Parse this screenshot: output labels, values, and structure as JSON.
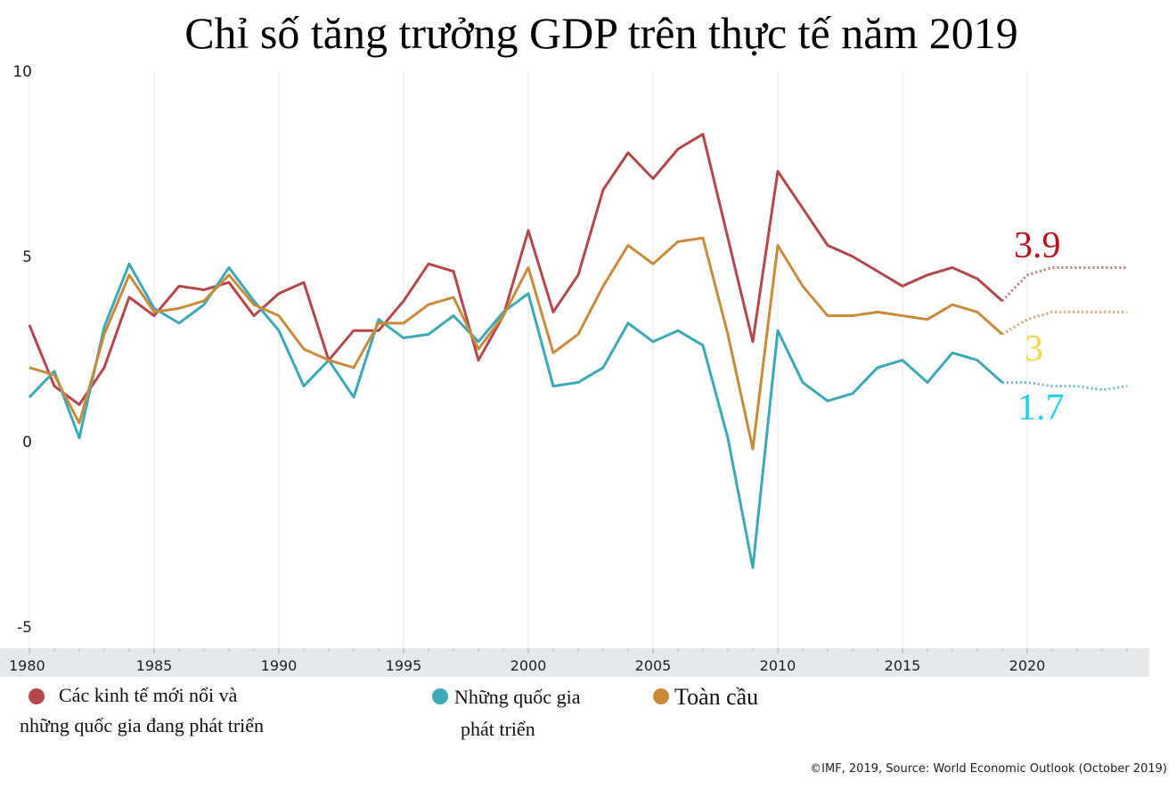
{
  "chart_data": {
    "type": "line",
    "title": "Chỉ số tăng trưởng GDP trên thực tế năm 2019",
    "xlabel": "",
    "ylabel": "",
    "ylim": [
      -5,
      10
    ],
    "xlim": [
      1980,
      2024
    ],
    "yticks": [
      "10",
      "5",
      "0",
      "-5"
    ],
    "ytick_values": [
      10,
      5,
      0,
      -5
    ],
    "xticks": [
      "1980",
      "1985",
      "1990",
      "1995",
      "2000",
      "2005",
      "2010",
      "2015",
      "2020"
    ],
    "grid": "vertical",
    "projection_start": 2019,
    "series": [
      {
        "name": "Các kinh tế mới nổi và những quốc gia đang phát triển",
        "color": "#b5474b",
        "values": [
          3.15,
          1.5,
          1.0,
          2.0,
          3.9,
          3.4,
          4.2,
          4.1,
          4.3,
          3.4,
          4.0,
          4.3,
          2.2,
          3.0,
          3.0,
          3.8,
          4.8,
          4.6,
          2.2,
          3.4,
          5.7,
          3.5,
          4.5,
          6.8,
          7.8,
          7.1,
          7.9,
          8.3,
          5.5,
          2.7,
          7.3,
          6.3,
          5.3,
          5.0,
          4.6,
          4.2,
          4.5,
          4.7,
          4.4,
          3.8,
          4.5,
          4.7,
          4.7,
          4.7,
          4.7
        ]
      },
      {
        "name": "Những quốc gia phát triển",
        "color": "#3aa9b9",
        "values": [
          1.2,
          1.9,
          0.1,
          3.1,
          4.8,
          3.6,
          3.2,
          3.7,
          4.7,
          3.8,
          3.0,
          1.5,
          2.2,
          1.2,
          3.3,
          2.8,
          2.9,
          3.4,
          2.7,
          3.5,
          4.0,
          1.5,
          1.6,
          2.0,
          3.2,
          2.7,
          3.0,
          2.6,
          0.1,
          -3.4,
          3.0,
          1.6,
          1.1,
          1.3,
          2.0,
          2.2,
          1.6,
          2.4,
          2.2,
          1.6,
          1.6,
          1.5,
          1.5,
          1.4,
          1.5
        ]
      },
      {
        "name": "Toàn cầu",
        "color": "#c98a3a",
        "values": [
          2.0,
          1.8,
          0.5,
          2.9,
          4.5,
          3.5,
          3.6,
          3.8,
          4.5,
          3.7,
          3.4,
          2.5,
          2.2,
          2.0,
          3.2,
          3.2,
          3.7,
          3.9,
          2.5,
          3.4,
          4.7,
          2.4,
          2.9,
          4.2,
          5.3,
          4.8,
          5.4,
          5.5,
          2.9,
          -0.2,
          5.3,
          4.2,
          3.4,
          3.4,
          3.5,
          3.4,
          3.3,
          3.7,
          3.5,
          2.9,
          3.3,
          3.5,
          3.5,
          3.5,
          3.5
        ]
      }
    ],
    "annotations": [
      {
        "text": "3.9",
        "color": "#c0101c"
      },
      {
        "text": "3",
        "color": "#f5d94a"
      },
      {
        "text": "1.7",
        "color": "#1fd3f0"
      }
    ],
    "legend": {
      "placement": "bottom",
      "items": [
        {
          "line1": "Các kinh tế mới nổi và",
          "line2": "những quốc gia đang phát triển",
          "color": "#b5474b"
        },
        {
          "line1": "Những quốc gia",
          "line2": "phát triển",
          "color": "#3aa9b9"
        },
        {
          "line1": "Toàn cầu",
          "line2": "",
          "color": "#c98a3a"
        }
      ]
    },
    "source": "©IMF, 2019, Source: World Economic Outlook (October 2019)"
  }
}
